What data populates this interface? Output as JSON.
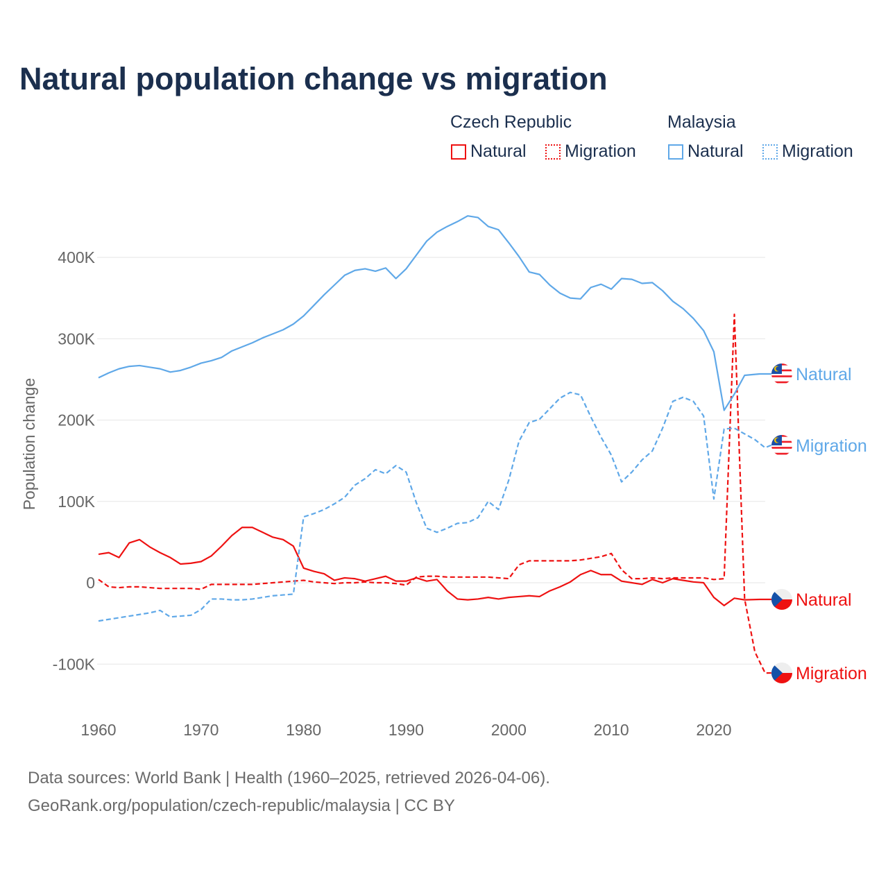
{
  "chart_data": {
    "type": "line",
    "title": "Natural population change vs migration",
    "xlabel": "",
    "ylabel": "Population change",
    "xlim": [
      1960,
      2025
    ],
    "ylim": [
      -150000,
      450000
    ],
    "x_ticks": [
      "1960",
      "1970",
      "1980",
      "1990",
      "2000",
      "2010",
      "2020"
    ],
    "y_ticks": [
      {
        "v": -100000,
        "label": "-100K"
      },
      {
        "v": 0,
        "label": "0"
      },
      {
        "v": 100000,
        "label": "100K"
      },
      {
        "v": 200000,
        "label": "200K"
      },
      {
        "v": 300000,
        "label": "300K"
      },
      {
        "v": 400000,
        "label": "400K"
      }
    ],
    "grid": true,
    "legend": {
      "groups": [
        {
          "country": "Czech Republic",
          "items": [
            "Natural",
            "Migration"
          ]
        },
        {
          "country": "Malaysia",
          "items": [
            "Natural",
            "Migration"
          ]
        }
      ],
      "placement": "top-right"
    },
    "series": [
      {
        "name": "Malaysia Natural",
        "label": "Natural",
        "color": "#5fa8e8",
        "dash": false,
        "flag": "malaysia",
        "start": 1960,
        "values": [
          252,
          258,
          263,
          266,
          267,
          265,
          263,
          259,
          261,
          265,
          270,
          273,
          277,
          285,
          290,
          295,
          301,
          306,
          311,
          318,
          328,
          341,
          354,
          366,
          378,
          384,
          386,
          383,
          387,
          374,
          386,
          403,
          420,
          431,
          438,
          444,
          451,
          449,
          438,
          434,
          418,
          401,
          382,
          379,
          366,
          356,
          350,
          349,
          363,
          367,
          361,
          374,
          373,
          368,
          369,
          359,
          346,
          337,
          325,
          310,
          284,
          212,
          232,
          255
        ]
      },
      {
        "name": "Malaysia Migration",
        "label": "Migration",
        "color": "#5fa8e8",
        "dash": true,
        "flag": "malaysia",
        "start": 1960,
        "values": [
          -47,
          -45,
          -43,
          -41,
          -39,
          -37,
          -34,
          -42,
          -41,
          -40,
          -33,
          -20,
          -20,
          -21,
          -21,
          -20,
          -18,
          -16,
          -15,
          -14,
          81,
          85,
          90,
          97,
          105,
          120,
          128,
          139,
          134,
          144,
          136,
          98,
          67,
          62,
          67,
          73,
          74,
          80,
          100,
          90,
          126,
          174,
          197,
          201,
          214,
          227,
          234,
          231,
          204,
          179,
          157,
          124,
          136,
          151,
          162,
          190,
          223,
          228,
          223,
          205,
          103,
          189,
          190,
          183,
          176,
          166
        ]
      },
      {
        "name": "Czech Republic Natural",
        "label": "Natural",
        "color": "#ee1111",
        "dash": false,
        "flag": "czech",
        "start": 1960,
        "values": [
          35,
          37,
          31,
          49,
          53,
          44,
          37,
          31,
          23,
          24,
          26,
          33,
          45,
          58,
          68,
          68,
          62,
          56,
          53,
          45,
          18,
          14,
          11,
          3,
          6,
          5,
          2,
          5,
          8,
          2,
          2,
          6,
          2,
          4,
          -10,
          -20,
          -21,
          -20,
          -18,
          -20,
          -18,
          -17,
          -16,
          -17,
          -10,
          -5,
          1,
          10,
          15,
          10,
          10,
          2,
          0,
          -2,
          4,
          0,
          5,
          3,
          1,
          0,
          -18,
          -28,
          -19,
          -21
        ]
      },
      {
        "name": "Czech Republic Migration",
        "label": "Migration",
        "color": "#ee1111",
        "dash": true,
        "flag": "czech",
        "start": 1960,
        "values": [
          4,
          -5,
          -6,
          -5,
          -5,
          -6,
          -7,
          -7,
          -7,
          -7,
          -8,
          -2,
          -2,
          -2,
          -2,
          -2,
          -1,
          0,
          1,
          2,
          3,
          1,
          0,
          -1,
          0,
          0,
          1,
          0,
          0,
          -1,
          -3,
          7,
          8,
          8,
          7,
          7,
          7,
          7,
          7,
          6,
          5,
          22,
          27,
          27,
          27,
          27,
          27,
          28,
          30,
          32,
          36,
          16,
          5,
          5,
          6,
          5,
          6,
          6,
          6,
          6,
          4,
          5,
          330,
          -20,
          -85,
          -111
        ]
      }
    ],
    "value_unit": "thousands"
  },
  "footer": {
    "line1": "Data sources: World Bank | Health (1960–2025, retrieved 2026-04-06).",
    "line2": "GeoRank.org/population/czech-republic/malaysia | CC BY"
  }
}
